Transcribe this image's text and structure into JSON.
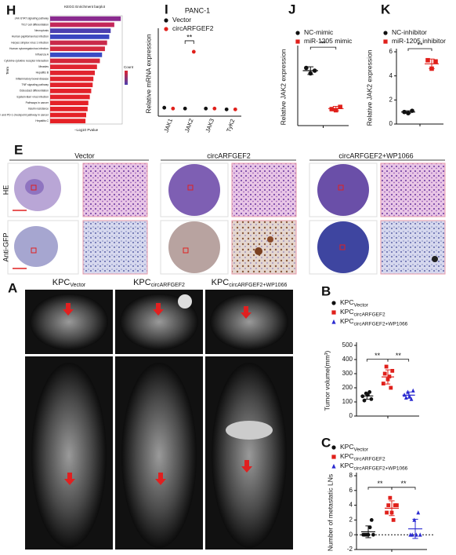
{
  "chart_data": [
    {
      "type": "barh",
      "label": "H",
      "title": "KEGG Enrichment barplot",
      "ylabel": "Term",
      "xlabel": "−Log10 Pvalue",
      "legend_title": "Count",
      "categories": [
        "JAK-STAT signaling pathway",
        "Th17 cell differentiation",
        "Necroptosis",
        "Human papillomavirus infection",
        "Herpes simplex virus 1 infection",
        "Human cytomegalovirus infection",
        "Influenza A",
        "Cytokine-cytokine receptor interaction",
        "Measles",
        "Hepatitis B",
        "Inflammatory bowel disease",
        "TNF signaling pathway",
        "Osteoclast differentiation",
        "Epstein-Barr virus infection",
        "Pathways in cancer",
        "Insulin resistance",
        "PD-L1 expression and PD-1 checkpoint pathway in cancer",
        "Hepatitis C"
      ],
      "values": [
        9.8,
        8.9,
        8.4,
        8.2,
        7.9,
        7.6,
        7.2,
        6.9,
        6.5,
        6.2,
        6.0,
        5.9,
        5.7,
        5.5,
        5.3,
        5.2,
        5.0,
        4.9
      ],
      "colors": [
        "#8a2b8f",
        "#c3275a",
        "#4b3fb0",
        "#3a46c0",
        "#c92a4a",
        "#d42a3f",
        "#3b4bc4",
        "#d4263a",
        "#e02430",
        "#e0242e",
        "#e1232c",
        "#e2222b",
        "#e3222a",
        "#e32229",
        "#e42228",
        "#e42128",
        "#e52127",
        "#e52126"
      ],
      "xlim": [
        0,
        10
      ]
    },
    {
      "type": "grouped_dot",
      "label": "I",
      "title": "PANC-1",
      "ylabel": "Relative mRNA expression",
      "categories": [
        "JAK1",
        "JAK2",
        "JAK3",
        "TyK2"
      ],
      "series": [
        {
          "name": "Vector",
          "color": "#111111",
          "marker": "circle",
          "values": [
            1.0,
            0.9,
            0.9,
            0.8
          ]
        },
        {
          "name": "circARFGEF2",
          "color": "#e0201b",
          "marker": "circle",
          "values": [
            0.9,
            7.6,
            0.9,
            0.8
          ]
        }
      ],
      "ylim": [
        0,
        10
      ],
      "annotations": [
        "**"
      ]
    },
    {
      "type": "strip",
      "label": "J",
      "ylabel": "Relative JAK2 expression",
      "series": [
        {
          "name": "NC-mimic",
          "color": "#111111",
          "marker": "circle",
          "values": [
            1.05,
            0.95,
            1.0
          ],
          "mean": 1.0,
          "sd": 0.07
        },
        {
          "name": "miR-1205 mimic",
          "color": "#e0201b",
          "marker": "square",
          "values": [
            0.3,
            0.28,
            0.34
          ],
          "mean": 0.31,
          "sd": 0.04
        }
      ],
      "ylim": [
        0,
        1.4
      ],
      "annotations": [
        "**"
      ]
    },
    {
      "type": "strip",
      "label": "K",
      "ylabel": "Relative JAK2 expression",
      "series": [
        {
          "name": "NC-inhibitor",
          "color": "#111111",
          "marker": "circle",
          "values": [
            1.0,
            0.9,
            1.1
          ],
          "mean": 1.0,
          "sd": 0.1
        },
        {
          "name": "miR-1205 inhibitor",
          "color": "#e0201b",
          "marker": "square",
          "values": [
            5.3,
            4.6,
            5.2
          ],
          "mean": 5.0,
          "sd": 0.4
        }
      ],
      "ylim": [
        0,
        6
      ],
      "yticks": [
        0,
        2,
        4,
        6
      ],
      "annotations": [
        "**"
      ]
    },
    {
      "type": "strip",
      "label": "B",
      "ylabel": "Tumor volume(mm³)",
      "series": [
        {
          "name": "KPC",
          "sub": "Vector",
          "color": "#111111",
          "marker": "circle",
          "values": [
            140,
            110,
            160,
            150,
            170,
            120
          ],
          "mean": 142,
          "sd": 23
        },
        {
          "name": "KPC",
          "sub": "circARFGEF2",
          "color": "#e0201b",
          "marker": "square",
          "values": [
            230,
            300,
            350,
            260,
            280,
            200,
            320
          ],
          "mean": 277,
          "sd": 50
        },
        {
          "name": "KPC",
          "sub": "circARFGEF2+WP1066",
          "color": "#2b2bd0",
          "marker": "triangle",
          "values": [
            150,
            130,
            170,
            140,
            120,
            180
          ],
          "mean": 148,
          "sd": 22
        }
      ],
      "ylim": [
        0,
        500
      ],
      "yticks": [
        0,
        100,
        200,
        300,
        400,
        500
      ],
      "annotations": [
        "**",
        "**"
      ]
    },
    {
      "type": "strip",
      "label": "C",
      "ylabel": "Number of metastatic LNs",
      "series": [
        {
          "name": "KPC",
          "sub": "Vector",
          "color": "#111111",
          "marker": "circle",
          "values": [
            0,
            0,
            0,
            0,
            1,
            2,
            0
          ],
          "mean": 0.4,
          "sd": 0.8
        },
        {
          "name": "KPC",
          "sub": "circARFGEF2",
          "color": "#e0201b",
          "marker": "square",
          "values": [
            3,
            4,
            5,
            3,
            2,
            4,
            4
          ],
          "mean": 3.6,
          "sd": 1.0
        },
        {
          "name": "KPC",
          "sub": "circARFGEF2+WP1066",
          "color": "#2b2bd0",
          "marker": "triangle",
          "values": [
            0,
            0,
            2,
            0,
            3,
            0
          ],
          "mean": 0.8,
          "sd": 1.3
        }
      ],
      "ylim": [
        -2,
        8
      ],
      "yticks": [
        -2,
        0,
        2,
        4,
        6,
        8
      ],
      "zero_line": true,
      "annotations": [
        "**",
        "**"
      ]
    }
  ],
  "panel_E": {
    "label": "E",
    "columns": [
      "Vector",
      "circARFGEF2",
      "circARFGEF2+WP1066"
    ],
    "rows": [
      "HE",
      "Anti-GFP"
    ]
  },
  "panel_A": {
    "label": "A",
    "columns": [
      {
        "main": "KPC",
        "sub": "Vector"
      },
      {
        "main": "KPC",
        "sub": "circARFGEF2"
      },
      {
        "main": "KPC",
        "sub": "circARFGEF2+WP1066"
      }
    ]
  }
}
